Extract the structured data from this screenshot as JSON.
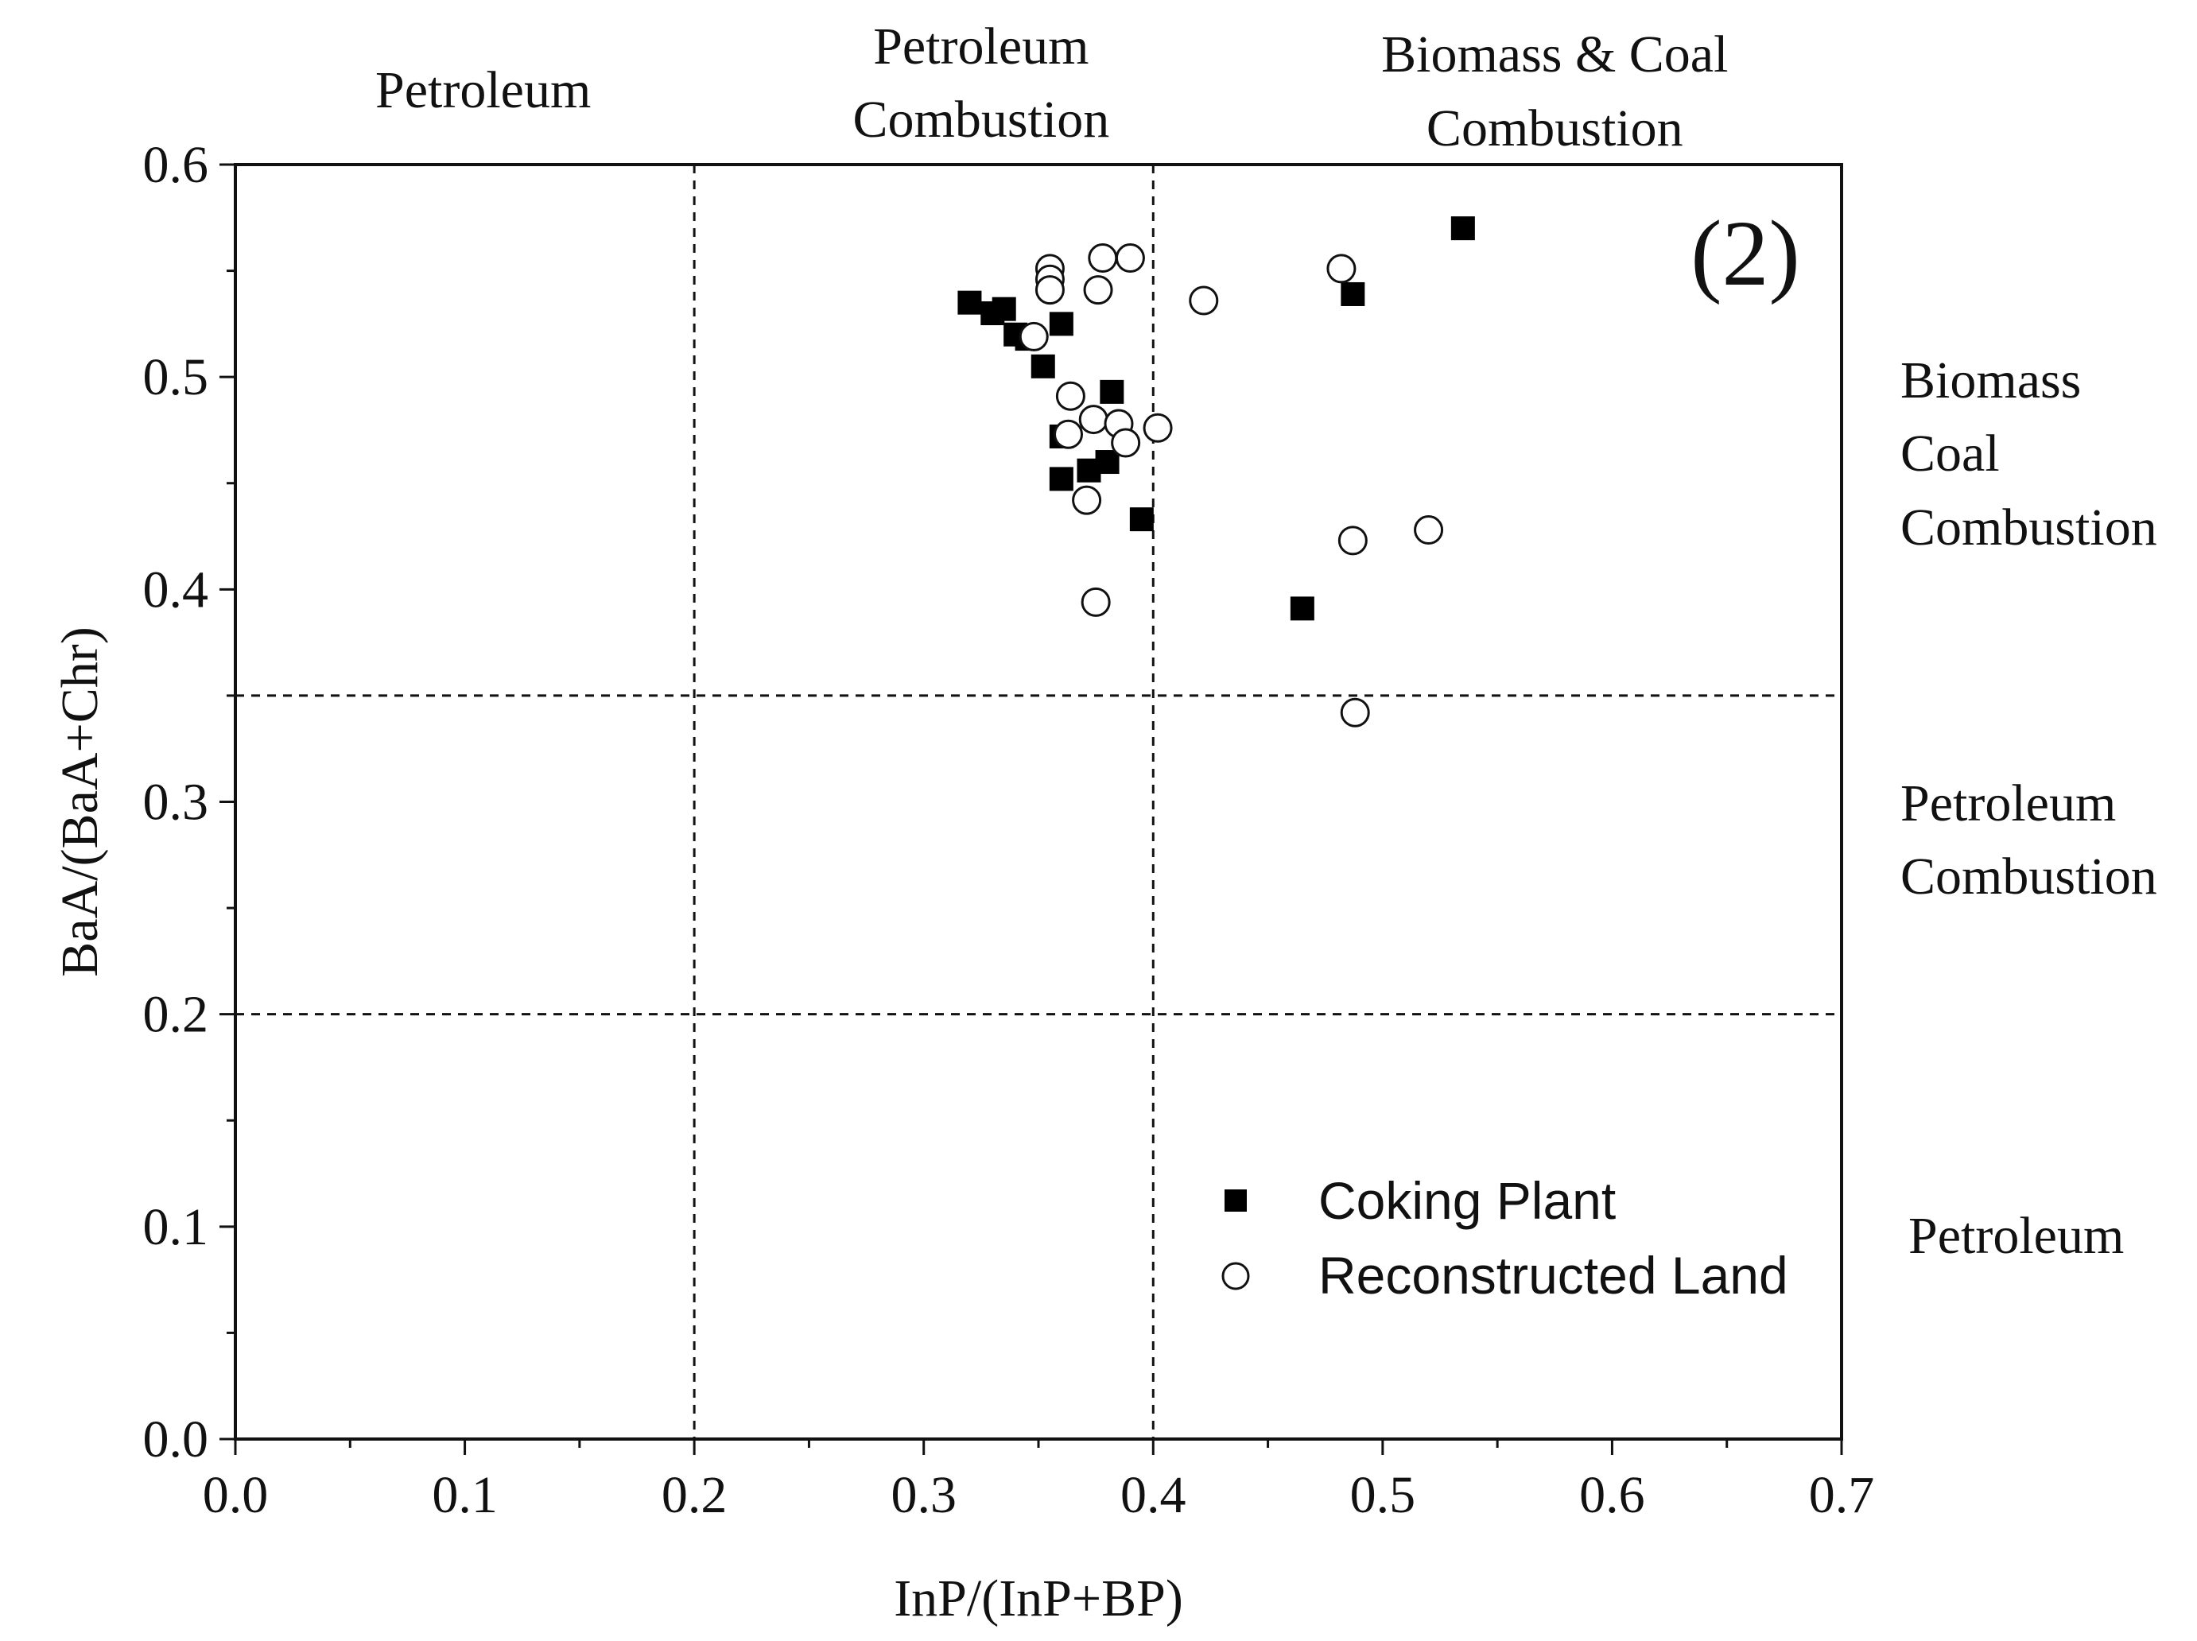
{
  "colors": {
    "ink": "#111111",
    "background": "#ffffff",
    "coking_fill": "#000000",
    "land_fill": "#ffffff"
  },
  "chart_data": {
    "type": "scatter",
    "panel_label": "(2)",
    "xlabel": "InP/(InP+BP)",
    "ylabel": "BaA/(BaA+Chr)",
    "xlim": [
      0.0,
      0.7
    ],
    "ylim": [
      0.0,
      0.6
    ],
    "x_ticks": [
      "0.0",
      "0.1",
      "0.2",
      "0.3",
      "0.4",
      "0.5",
      "0.6",
      "0.7"
    ],
    "y_ticks": [
      "0.0",
      "0.1",
      "0.2",
      "0.3",
      "0.4",
      "0.5",
      "0.6"
    ],
    "grid": false,
    "reference_lines": {
      "x": [
        0.2,
        0.4
      ],
      "y": [
        0.2,
        0.35
      ]
    },
    "top_region_labels": [
      {
        "lines": [
          "Petroleum"
        ],
        "x_range": [
          0.0,
          0.2
        ]
      },
      {
        "lines": [
          "Petroleum",
          "Combustion"
        ],
        "x_range": [
          0.2,
          0.4
        ]
      },
      {
        "lines": [
          "Biomass & Coal",
          "Combustion"
        ],
        "x_range": [
          0.4,
          0.7
        ]
      }
    ],
    "right_region_labels": [
      {
        "lines": [
          "Biomass",
          "Coal",
          "Combustion"
        ],
        "y_range": [
          0.35,
          0.6
        ]
      },
      {
        "lines": [
          "Petroleum",
          "Combustion"
        ],
        "y_range": [
          0.2,
          0.35
        ]
      },
      {
        "lines": [
          "Petroleum"
        ],
        "y_range": [
          0.0,
          0.2
        ]
      }
    ],
    "legend_position": "bottom-right",
    "series": [
      {
        "name": "Coking Plant",
        "marker": "filled-square",
        "points": [
          [
            0.32,
            0.535
          ],
          [
            0.33,
            0.53
          ],
          [
            0.335,
            0.532
          ],
          [
            0.34,
            0.52
          ],
          [
            0.345,
            0.518
          ],
          [
            0.352,
            0.505
          ],
          [
            0.36,
            0.525
          ],
          [
            0.36,
            0.472
          ],
          [
            0.36,
            0.452
          ],
          [
            0.372,
            0.456
          ],
          [
            0.38,
            0.46
          ],
          [
            0.382,
            0.493
          ],
          [
            0.395,
            0.433
          ],
          [
            0.465,
            0.391
          ],
          [
            0.487,
            0.539
          ],
          [
            0.535,
            0.57
          ]
        ]
      },
      {
        "name": "Reconstructed Land",
        "marker": "open-circle",
        "points": [
          [
            0.355,
            0.551
          ],
          [
            0.355,
            0.546
          ],
          [
            0.355,
            0.541
          ],
          [
            0.348,
            0.519
          ],
          [
            0.364,
            0.491
          ],
          [
            0.363,
            0.473
          ],
          [
            0.374,
            0.48
          ],
          [
            0.385,
            0.478
          ],
          [
            0.388,
            0.469
          ],
          [
            0.402,
            0.476
          ],
          [
            0.371,
            0.442
          ],
          [
            0.375,
            0.394
          ],
          [
            0.376,
            0.541
          ],
          [
            0.378,
            0.556
          ],
          [
            0.39,
            0.556
          ],
          [
            0.422,
            0.536
          ],
          [
            0.482,
            0.551
          ],
          [
            0.487,
            0.423
          ],
          [
            0.52,
            0.428
          ],
          [
            0.488,
            0.342
          ]
        ]
      }
    ]
  }
}
